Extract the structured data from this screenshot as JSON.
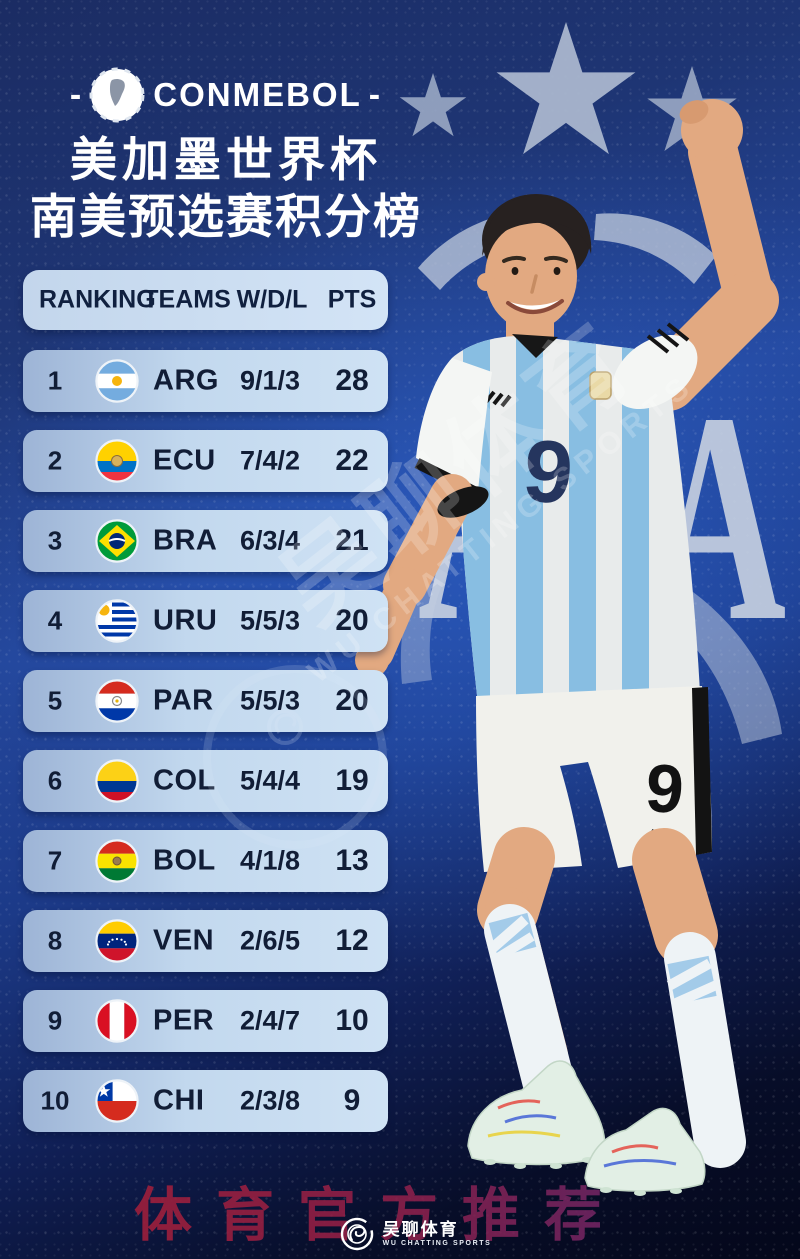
{
  "header": {
    "brand": "CONMEBOL",
    "dash_left": "-",
    "dash_right": "-",
    "title_line1": "美加墨世界杯",
    "title_line2": "南美预选赛积分榜"
  },
  "table": {
    "columns": [
      "RANKING",
      "TEAMS",
      "W/D/L",
      "PTS"
    ],
    "rows": [
      {
        "rank": "1",
        "team": "ARG",
        "flag": "argentina-flag-icon",
        "wdl": "9/1/3",
        "pts": "28"
      },
      {
        "rank": "2",
        "team": "ECU",
        "flag": "ecuador-flag-icon",
        "wdl": "7/4/2",
        "pts": "22"
      },
      {
        "rank": "3",
        "team": "BRA",
        "flag": "brazil-flag-icon",
        "wdl": "6/3/4",
        "pts": "21"
      },
      {
        "rank": "4",
        "team": "URU",
        "flag": "uruguay-flag-icon",
        "wdl": "5/5/3",
        "pts": "20"
      },
      {
        "rank": "5",
        "team": "PAR",
        "flag": "paraguay-flag-icon",
        "wdl": "5/5/3",
        "pts": "20"
      },
      {
        "rank": "6",
        "team": "COL",
        "flag": "colombia-flag-icon",
        "wdl": "5/4/4",
        "pts": "19"
      },
      {
        "rank": "7",
        "team": "BOL",
        "flag": "bolivia-flag-icon",
        "wdl": "4/1/8",
        "pts": "13"
      },
      {
        "rank": "8",
        "team": "VEN",
        "flag": "venezuela-flag-icon",
        "wdl": "2/6/5",
        "pts": "12"
      },
      {
        "rank": "9",
        "team": "PER",
        "flag": "peru-flag-icon",
        "wdl": "2/4/7",
        "pts": "10"
      },
      {
        "rank": "10",
        "team": "CHI",
        "flag": "chile-flag-icon",
        "wdl": "2/3/8",
        "pts": "9"
      }
    ]
  },
  "background": {
    "afa_watermark": "AFA",
    "star_count": "3"
  },
  "player": {
    "jersey_number": "9",
    "shorts_number": "9"
  },
  "watermark": {
    "diagonal_cn": "吴聊体育",
    "diagonal_en": "WU CHATTING SPORTS"
  },
  "footer": {
    "promo_text": "体育官方推荐",
    "logo_cn": "吴聊体育",
    "logo_en": "WU CHATTING SPORTS"
  },
  "colors": {
    "bg_navy": "#1b2c63",
    "bg_bright_blue": "#2f68d6",
    "row_light_blue": "#cfe2f4",
    "row_text": "#111d36",
    "star_gray": "#a3b1cb",
    "promo_red": "#b01f33",
    "promo_purple": "#5e2b7a",
    "jersey_stripe": "#8fc7ea"
  }
}
